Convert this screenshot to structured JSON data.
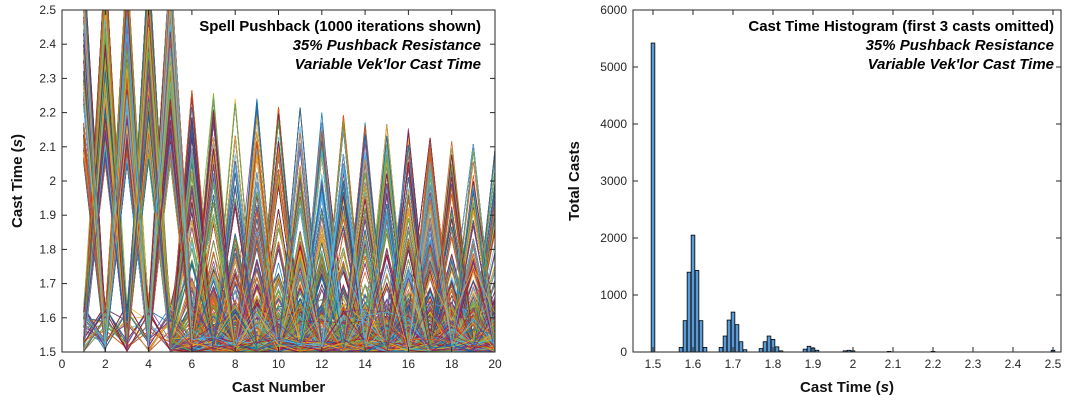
{
  "chart_data": [
    {
      "type": "line",
      "title_lines": [
        "Spell Pushback (1000 iterations shown)",
        "35% Pushback Resistance",
        "Variable Vek'lor Cast Time"
      ],
      "xlabel_parts": [
        "Cast Number"
      ],
      "ylabel_parts": [
        "Cast Time (",
        "s",
        ")"
      ],
      "xlim": [
        0,
        20
      ],
      "ylim": [
        1.5,
        2.5
      ],
      "xticks": [
        0,
        2,
        4,
        6,
        8,
        10,
        12,
        14,
        16,
        18,
        20
      ],
      "yticks": [
        1.5,
        1.6,
        1.7,
        1.8,
        1.9,
        2,
        2.1,
        2.2,
        2.3,
        2.4,
        2.5
      ],
      "series_count": 1000,
      "grid": false,
      "colors": [
        "#0072BD",
        "#D95319",
        "#EDB120",
        "#7E2F8E",
        "#77AC30",
        "#4DBEEE",
        "#A2142F"
      ]
    },
    {
      "type": "bar",
      "title_lines": [
        "Cast Time Histogram (first 3 casts omitted)",
        "35% Pushback Resistance",
        "Variable Vek'lor Cast Time"
      ],
      "xlabel_parts": [
        "Cast Time (",
        "s",
        ")"
      ],
      "ylabel_parts": [
        "Total Casts"
      ],
      "xlim": [
        1.45,
        2.52
      ],
      "ylim": [
        0,
        6000
      ],
      "xticks": [
        1.5,
        1.6,
        1.7,
        1.8,
        1.9,
        2,
        2.1,
        2.2,
        2.3,
        2.4,
        2.5
      ],
      "yticks": [
        0,
        1000,
        2000,
        3000,
        4000,
        5000,
        6000
      ],
      "bar_color": "#5B9BD5",
      "bins": [
        {
          "x": 1.5,
          "count": 5420
        },
        {
          "x": 1.57,
          "count": 80
        },
        {
          "x": 1.58,
          "count": 550
        },
        {
          "x": 1.59,
          "count": 1400
        },
        {
          "x": 1.6,
          "count": 2050
        },
        {
          "x": 1.61,
          "count": 1430
        },
        {
          "x": 1.62,
          "count": 550
        },
        {
          "x": 1.63,
          "count": 80
        },
        {
          "x": 1.67,
          "count": 80
        },
        {
          "x": 1.68,
          "count": 280
        },
        {
          "x": 1.69,
          "count": 560
        },
        {
          "x": 1.7,
          "count": 700
        },
        {
          "x": 1.71,
          "count": 480
        },
        {
          "x": 1.72,
          "count": 180
        },
        {
          "x": 1.73,
          "count": 40
        },
        {
          "x": 1.77,
          "count": 60
        },
        {
          "x": 1.78,
          "count": 180
        },
        {
          "x": 1.79,
          "count": 280
        },
        {
          "x": 1.8,
          "count": 220
        },
        {
          "x": 1.81,
          "count": 90
        },
        {
          "x": 1.82,
          "count": 20
        },
        {
          "x": 1.88,
          "count": 50
        },
        {
          "x": 1.89,
          "count": 100
        },
        {
          "x": 1.9,
          "count": 70
        },
        {
          "x": 1.91,
          "count": 30
        },
        {
          "x": 1.98,
          "count": 20
        },
        {
          "x": 1.99,
          "count": 30
        },
        {
          "x": 2.0,
          "count": 20
        },
        {
          "x": 2.09,
          "count": 8
        },
        {
          "x": 2.2,
          "count": 5
        },
        {
          "x": 2.5,
          "count": 30
        }
      ]
    }
  ]
}
